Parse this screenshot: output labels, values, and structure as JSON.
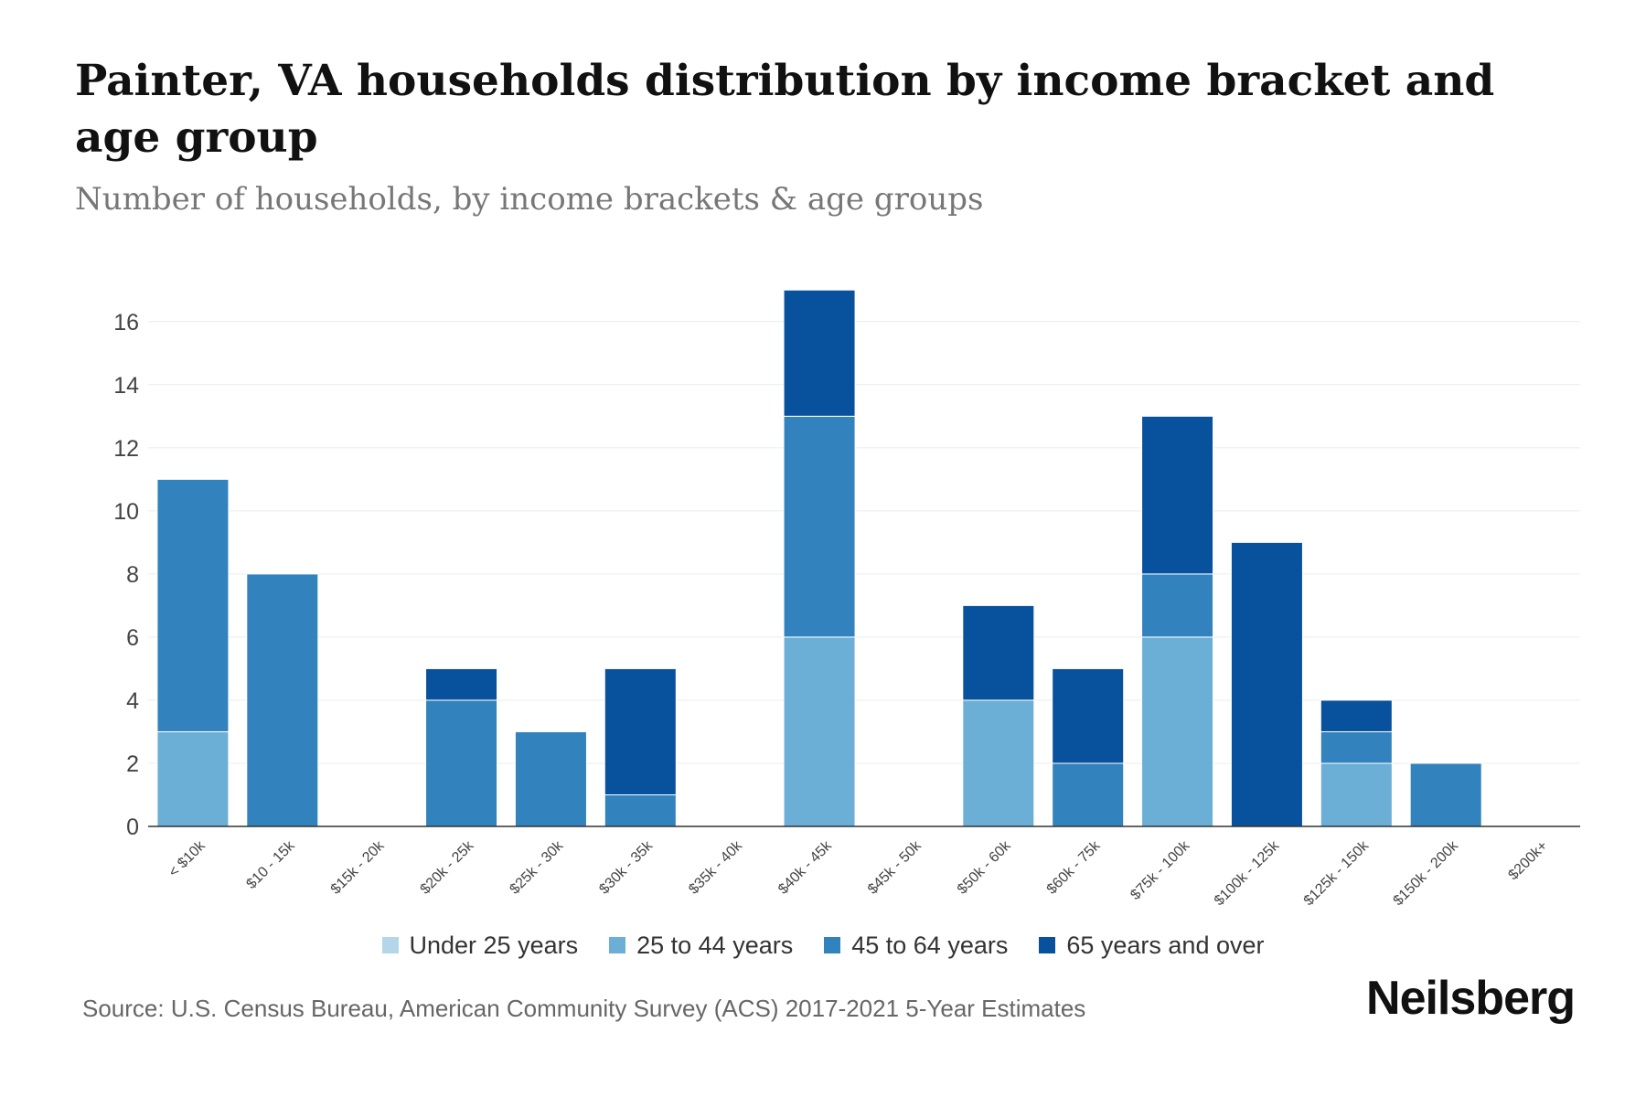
{
  "chart_data": {
    "type": "bar",
    "stacked": true,
    "title": "Painter, VA households distribution by income bracket and age group",
    "subtitle": "Number of households, by income brackets & age groups",
    "categories": [
      "< $10k",
      "$10 - 15k",
      "$15k - 20k",
      "$20k - 25k",
      "$25k - 30k",
      "$30k - 35k",
      "$35k - 40k",
      "$40k - 45k",
      "$45k - 50k",
      "$50k - 60k",
      "$60k - 75k",
      "$75k - 100k",
      "$100k - 125k",
      "$125k - 150k",
      "$150k - 200k",
      "$200k+"
    ],
    "series": [
      {
        "name": "Under 25 years",
        "color": "#b3d7e8",
        "values": [
          0,
          0,
          0,
          0,
          0,
          0,
          0,
          0,
          0,
          0,
          0,
          0,
          0,
          0,
          0,
          0
        ]
      },
      {
        "name": "25 to 44 years",
        "color": "#6baed6",
        "values": [
          3,
          0,
          0,
          0,
          0,
          0,
          0,
          6,
          0,
          4,
          0,
          6,
          0,
          2,
          0,
          0
        ]
      },
      {
        "name": "45 to 64 years",
        "color": "#3182bd",
        "values": [
          8,
          8,
          0,
          4,
          3,
          1,
          0,
          7,
          0,
          0,
          2,
          2,
          0,
          1,
          2,
          0
        ]
      },
      {
        "name": "65 years and over",
        "color": "#08519c",
        "values": [
          0,
          0,
          0,
          1,
          0,
          4,
          0,
          4,
          0,
          3,
          3,
          5,
          9,
          1,
          0,
          0
        ]
      }
    ],
    "yticks": [
      0,
      2,
      4,
      6,
      8,
      10,
      12,
      14,
      16
    ],
    "ylim": [
      0,
      17.5
    ],
    "grid": true,
    "legend": "bottom-center"
  },
  "footer": {
    "source": "Source: U.S. Census Bureau, American Community Survey (ACS) 2017-2021 5-Year Estimates",
    "brand": "Neilsberg"
  }
}
